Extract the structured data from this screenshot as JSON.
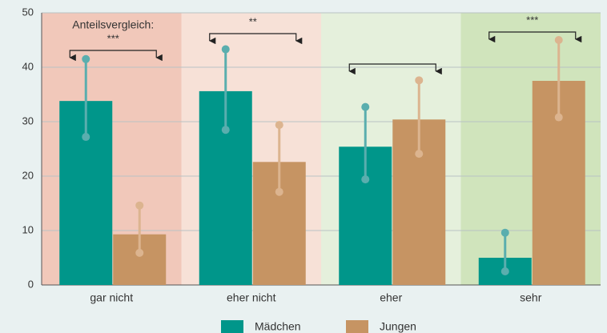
{
  "chart_data": {
    "type": "bar",
    "categories": [
      "gar nicht",
      "eher nicht",
      "eher",
      "sehr"
    ],
    "series": [
      {
        "name": "Mädchen",
        "color": "#00968a",
        "errorColor": "#5aaeae",
        "values": [
          33.8,
          35.6,
          25.4,
          5.0
        ],
        "ci_low": [
          27.2,
          28.5,
          19.4,
          2.5
        ],
        "ci_high": [
          41.5,
          43.3,
          32.7,
          9.6
        ]
      },
      {
        "name": "Jungen",
        "color": "#c69463",
        "errorColor": "#dcb48f",
        "values": [
          9.3,
          22.6,
          30.4,
          37.5
        ],
        "ci_low": [
          5.9,
          17.1,
          24.1,
          30.8
        ],
        "ci_high": [
          14.6,
          29.4,
          37.6,
          45.0
        ]
      }
    ],
    "category_colors": [
      "#f1c8ba",
      "#f7e1d7",
      "#e5f0dc",
      "#d0e4bc"
    ],
    "annotation": "Anteilsvergleich:",
    "significance": [
      "***",
      "**",
      null,
      "***"
    ],
    "ylim": [
      0,
      50
    ],
    "yticks": [
      0,
      10,
      20,
      30,
      40,
      50
    ],
    "grid": true
  }
}
